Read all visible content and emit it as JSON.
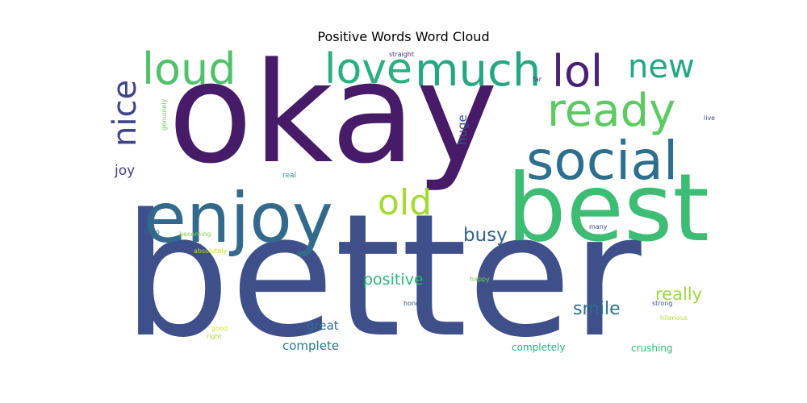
{
  "chart_data": {
    "type": "wordcloud",
    "title": "Positive Words Word Cloud",
    "words": [
      {
        "text": "better",
        "weight": 1.0,
        "color": "#3e4f8a"
      },
      {
        "text": "okay",
        "weight": 0.82,
        "color": "#471b68"
      },
      {
        "text": "best",
        "weight": 0.6,
        "color": "#3dbc74"
      },
      {
        "text": "enjoy",
        "weight": 0.52,
        "color": "#336a8c"
      },
      {
        "text": "social",
        "weight": 0.4,
        "color": "#2d6f8e"
      },
      {
        "text": "loud",
        "weight": 0.34,
        "color": "#4fc16b"
      },
      {
        "text": "much",
        "weight": 0.34,
        "color": "#26a784"
      },
      {
        "text": "love",
        "weight": 0.32,
        "color": "#2ab07f"
      },
      {
        "text": "ready",
        "weight": 0.32,
        "color": "#5ec962"
      },
      {
        "text": "lol",
        "weight": 0.31,
        "color": "#482173"
      },
      {
        "text": "nice",
        "weight": 0.3,
        "color": "#414487"
      },
      {
        "text": "new",
        "weight": 0.24,
        "color": "#22a884"
      },
      {
        "text": "old",
        "weight": 0.24,
        "color": "#a5da31"
      },
      {
        "text": "busy",
        "weight": 0.13,
        "color": "#355f8d"
      },
      {
        "text": "positive",
        "weight": 0.11,
        "color": "#2fb47c"
      },
      {
        "text": "smile",
        "weight": 0.11,
        "color": "#2e6e8e"
      },
      {
        "text": "really",
        "weight": 0.1,
        "color": "#9bd93c"
      },
      {
        "text": "joy",
        "weight": 0.09,
        "color": "#433e85"
      },
      {
        "text": "huge",
        "weight": 0.08,
        "color": "#3b528b"
      },
      {
        "text": "great",
        "weight": 0.08,
        "color": "#2c728e"
      },
      {
        "text": "complete",
        "weight": 0.08,
        "color": "#2a788e"
      },
      {
        "text": "completely",
        "weight": 0.07,
        "color": "#27ad81"
      },
      {
        "text": "crushing",
        "weight": 0.07,
        "color": "#35b779"
      },
      {
        "text": "real",
        "weight": 0.05,
        "color": "#21918c"
      },
      {
        "text": "genuinely",
        "weight": 0.05,
        "color": "#6cce59"
      },
      {
        "text": "straight",
        "weight": 0.05,
        "color": "#46327e"
      },
      {
        "text": "far",
        "weight": 0.05,
        "color": "#46327e"
      },
      {
        "text": "live",
        "weight": 0.05,
        "color": "#3b528b"
      },
      {
        "text": "lmao",
        "weight": 0.04,
        "color": "#31688e"
      },
      {
        "text": "becoming",
        "weight": 0.04,
        "color": "#7ad151"
      },
      {
        "text": "absolutely",
        "weight": 0.04,
        "color": "#bddf26"
      },
      {
        "text": "many",
        "weight": 0.04,
        "color": "#3f4788"
      },
      {
        "text": "happy",
        "weight": 0.04,
        "color": "#7ad151"
      },
      {
        "text": "honestly",
        "weight": 0.04,
        "color": "#39568c"
      },
      {
        "text": "strong",
        "weight": 0.04,
        "color": "#3b528b"
      },
      {
        "text": "hilarious",
        "weight": 0.04,
        "color": "#b5de2b"
      },
      {
        "text": "good",
        "weight": 0.04,
        "color": "#d8e219"
      },
      {
        "text": "right",
        "weight": 0.04,
        "color": "#a0da39"
      }
    ]
  }
}
